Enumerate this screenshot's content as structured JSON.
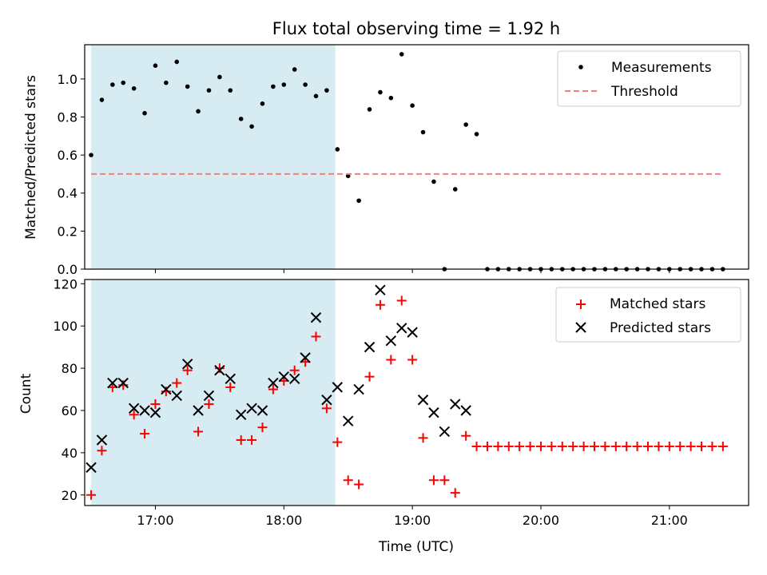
{
  "chart_data": [
    {
      "type": "scatter",
      "title": "Flux total observing time = 1.92 h",
      "xlabel": "",
      "ylabel": "Matched/Predicted stars",
      "xlim": [
        "16:27",
        "21:37"
      ],
      "ylim": [
        0,
        1.18
      ],
      "yticks": [
        "0.0",
        "0.2",
        "0.4",
        "0.6",
        "0.8",
        "1.0"
      ],
      "xticks": [
        "17:00",
        "18:00",
        "19:00",
        "20:00",
        "21:00"
      ],
      "grid": false,
      "legend_position": "top-right",
      "shaded_span": [
        "16:30",
        "18:24"
      ],
      "series": [
        {
          "name": "Measurements",
          "kind": "points",
          "color": "#000000",
          "x": [
            "16:30",
            "16:35",
            "16:40",
            "16:45",
            "16:50",
            "16:55",
            "17:00",
            "17:05",
            "17:10",
            "17:15",
            "17:20",
            "17:25",
            "17:30",
            "17:35",
            "17:40",
            "17:45",
            "17:50",
            "17:55",
            "18:00",
            "18:05",
            "18:10",
            "18:15",
            "18:20",
            "18:25",
            "18:30",
            "18:35",
            "18:40",
            "18:45",
            "18:50",
            "18:55",
            "19:00",
            "19:05",
            "19:10",
            "19:15",
            "19:20",
            "19:25",
            "19:30",
            "19:35",
            "19:40",
            "19:45",
            "19:50",
            "19:55",
            "20:00",
            "20:05",
            "20:10",
            "20:15",
            "20:20",
            "20:25",
            "20:30",
            "20:35",
            "20:40",
            "20:45",
            "20:50",
            "20:55",
            "21:00",
            "21:05",
            "21:10",
            "21:15",
            "21:20",
            "21:25"
          ],
          "y": [
            0.6,
            0.89,
            0.97,
            0.98,
            0.95,
            0.82,
            1.07,
            0.98,
            1.09,
            0.96,
            0.83,
            0.94,
            1.01,
            0.94,
            0.79,
            0.75,
            0.87,
            0.96,
            0.97,
            1.05,
            0.97,
            0.91,
            0.94,
            0.63,
            0.49,
            0.36,
            0.84,
            0.93,
            0.9,
            1.13,
            0.86,
            0.72,
            0.46,
            0.0,
            0.42,
            0.76,
            0.71,
            0.0,
            0.0,
            0.0,
            0.0,
            0.0,
            0.0,
            0.0,
            0.0,
            0.0,
            0.0,
            0.0,
            0.0,
            0.0,
            0.0,
            0.0,
            0.0,
            0.0,
            0.0,
            0.0,
            0.0,
            0.0,
            0.0,
            0.0
          ]
        },
        {
          "name": "Threshold",
          "kind": "dashed-line",
          "color": "#f08080",
          "x": [
            "16:30",
            "21:25"
          ],
          "y": [
            0.5,
            0.5
          ]
        }
      ]
    },
    {
      "type": "scatter",
      "title": "",
      "xlabel": "Time (UTC)",
      "ylabel": "Count",
      "xlim": [
        "16:27",
        "21:37"
      ],
      "ylim": [
        15,
        122
      ],
      "yticks": [
        "20",
        "40",
        "60",
        "80",
        "100",
        "120"
      ],
      "xticks": [
        "17:00",
        "18:00",
        "19:00",
        "20:00",
        "21:00"
      ],
      "grid": false,
      "legend_position": "top-right",
      "shaded_span": [
        "16:30",
        "18:24"
      ],
      "series": [
        {
          "name": "Matched stars",
          "kind": "plus",
          "color": "#ff0000",
          "x": [
            "16:30",
            "16:35",
            "16:40",
            "16:45",
            "16:50",
            "16:55",
            "17:00",
            "17:05",
            "17:10",
            "17:15",
            "17:20",
            "17:25",
            "17:30",
            "17:35",
            "17:40",
            "17:45",
            "17:50",
            "17:55",
            "18:00",
            "18:05",
            "18:10",
            "18:15",
            "18:20",
            "18:25",
            "18:30",
            "18:35",
            "18:40",
            "18:45",
            "18:50",
            "18:55",
            "19:00",
            "19:05",
            "19:10",
            "19:15",
            "19:20",
            "19:25",
            "19:30",
            "19:35",
            "19:40",
            "19:45",
            "19:50",
            "19:55",
            "20:00",
            "20:05",
            "20:10",
            "20:15",
            "20:20",
            "20:25",
            "20:30",
            "20:35",
            "20:40",
            "20:45",
            "20:50",
            "20:55",
            "21:00",
            "21:05",
            "21:10",
            "21:15",
            "21:20",
            "21:25"
          ],
          "y": [
            20,
            41,
            71,
            72,
            58,
            49,
            63,
            69,
            73,
            79,
            50,
            63,
            80,
            71,
            46,
            46,
            52,
            70,
            74,
            79,
            83,
            95,
            61,
            45,
            27,
            25,
            76,
            110,
            84,
            112,
            84,
            47,
            27,
            27,
            21,
            48,
            43,
            43,
            43,
            43,
            43,
            43,
            43,
            43,
            43,
            43,
            43,
            43,
            43,
            43,
            43,
            43,
            43,
            43,
            43,
            43,
            43,
            43,
            43,
            43
          ]
        },
        {
          "name": "Predicted stars",
          "kind": "x",
          "color": "#000000",
          "x": [
            "16:30",
            "16:35",
            "16:40",
            "16:45",
            "16:50",
            "16:55",
            "17:00",
            "17:05",
            "17:10",
            "17:15",
            "17:20",
            "17:25",
            "17:30",
            "17:35",
            "17:40",
            "17:45",
            "17:50",
            "17:55",
            "18:00",
            "18:05",
            "18:10",
            "18:15",
            "18:20",
            "18:25",
            "18:30",
            "18:35",
            "18:40",
            "18:45",
            "18:50",
            "18:55",
            "19:00",
            "19:05",
            "19:10",
            "19:15",
            "19:20",
            "19:25"
          ],
          "y": [
            33,
            46,
            73,
            73,
            61,
            60,
            59,
            70,
            67,
            82,
            60,
            67,
            79,
            75,
            58,
            61,
            60,
            73,
            76,
            75,
            85,
            104,
            65,
            71,
            55,
            70,
            90,
            117,
            93,
            99,
            97,
            65,
            59,
            50,
            63,
            60
          ]
        }
      ]
    }
  ]
}
